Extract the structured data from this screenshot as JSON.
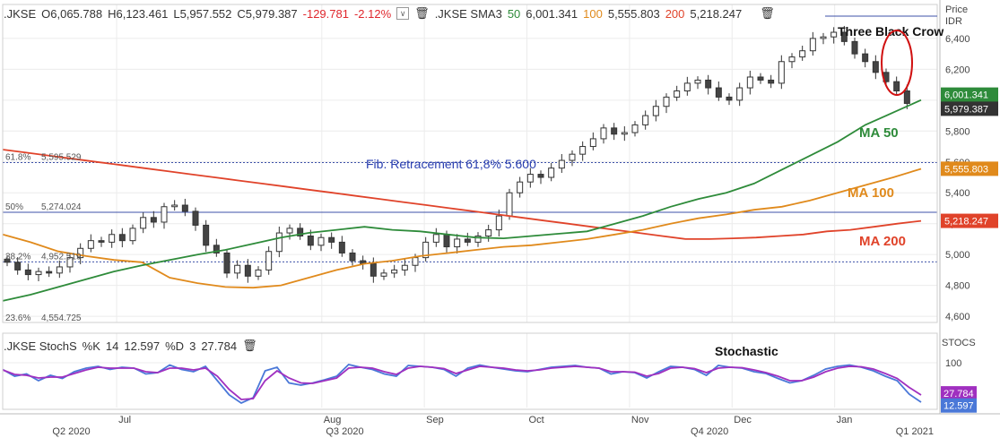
{
  "header": {
    "symbol": ".JKSE",
    "open_label": "O",
    "open": "6,065.788",
    "high_label": "H",
    "high": "6,123.461",
    "low_label": "L",
    "low": "5,957.552",
    "close_label": "C",
    "close": "5,979.387",
    "change": "-129.781",
    "change_pct": "-2.12%",
    "sma_symbol": ".JKSE SMA3",
    "sma50_len": "50",
    "sma50_val": "6,001.341",
    "sma100_len": "100",
    "sma100_val": "5,555.803",
    "sma200_len": "200",
    "sma200_val": "5,218.247",
    "price_axis_title": "Price",
    "price_axis_unit": "IDR"
  },
  "stoch_header": {
    "symbol": ".JKSE StochS",
    "k_label": "%K",
    "k_len": "14",
    "k_val": "12.597",
    "d_label": "%D",
    "d_len": "3",
    "d_val": "27.784",
    "axis_title": "STOCS"
  },
  "colors": {
    "candle_up": "#ffffff",
    "candle_down": "#444444",
    "ma50": "#2e8b3a",
    "ma100": "#e08a1c",
    "ma200": "#e0432a",
    "fib_line": "#3c50a8",
    "stoch_k": "#4a78d8",
    "stoch_d": "#a030c0",
    "negative": "#e0282e"
  },
  "chart_data": [
    {
      "type": "candlestick",
      "title": "",
      "ylabel": "Price IDR",
      "ylim": [
        4560,
        6620
      ],
      "y_ticks": [
        4600,
        4800,
        5000,
        5200,
        5400,
        5600,
        5800,
        6000,
        6200,
        6400
      ],
      "y_tick_labels": [
        "4,600",
        "4,800",
        "5,000",
        "5,200",
        "5,400",
        "5,600",
        "5,800",
        "6,000",
        "6,200",
        "6,400"
      ],
      "month_labels": [
        {
          "label": "Jul",
          "week": 5
        },
        {
          "label": "Aug",
          "week": 14
        },
        {
          "label": "Sep",
          "week": 18.5
        },
        {
          "label": "Oct",
          "week": 23
        },
        {
          "label": "Nov",
          "week": 27.5
        },
        {
          "label": "Dec",
          "week": 32
        },
        {
          "label": "Jan",
          "week": 36.5
        }
      ],
      "quarter_labels": [
        {
          "label": "Q2 2020",
          "week": 1
        },
        {
          "label": "Q3 2020",
          "week": 13
        },
        {
          "label": "Q4 2020",
          "week": 29
        },
        {
          "label": "Q1 2021",
          "week": 38
        }
      ],
      "close_series": [
        4950,
        4900,
        4870,
        4890,
        4880,
        4920,
        4980,
        5040,
        5090,
        5080,
        5130,
        5090,
        5170,
        5240,
        5210,
        5310,
        5320,
        5280,
        5190,
        5060,
        5010,
        4880,
        4930,
        4860,
        4900,
        5020,
        5140,
        5170,
        5120,
        5060,
        5110,
        5080,
        5010,
        4960,
        4940,
        4860,
        4880,
        4900,
        4930,
        4980,
        5080,
        5130,
        5050,
        5100,
        5080,
        5120,
        5160,
        5250,
        5400,
        5470,
        5520,
        5500,
        5560,
        5610,
        5650,
        5700,
        5750,
        5820,
        5780,
        5790,
        5840,
        5900,
        5960,
        6020,
        6060,
        6110,
        6130,
        6080,
        6020,
        6000,
        6080,
        6150,
        6130,
        6110,
        6250,
        6280,
        6320,
        6400,
        6410,
        6440,
        6380,
        6300,
        6250,
        6180,
        6120,
        6060,
        5979
      ],
      "ma50": [
        4700,
        4740,
        4790,
        4840,
        4890,
        4930,
        4965,
        5000,
        5030,
        5070,
        5110,
        5140,
        5160,
        5180,
        5160,
        5150,
        5130,
        5110,
        5105,
        5120,
        5135,
        5150,
        5200,
        5250,
        5310,
        5360,
        5400,
        5460,
        5550,
        5640,
        5730,
        5840,
        5920,
        6001
      ],
      "ma100": [
        5130,
        5080,
        5020,
        4990,
        4965,
        4950,
        4850,
        4815,
        4790,
        4785,
        4800,
        4850,
        4900,
        4940,
        4960,
        4990,
        5010,
        5030,
        5050,
        5060,
        5080,
        5100,
        5130,
        5160,
        5200,
        5235,
        5260,
        5290,
        5310,
        5350,
        5400,
        5450,
        5500,
        5555
      ],
      "ma200": [
        5680,
        5660,
        5640,
        5620,
        5600,
        5580,
        5560,
        5540,
        5520,
        5500,
        5480,
        5460,
        5440,
        5420,
        5400,
        5380,
        5360,
        5340,
        5320,
        5300,
        5280,
        5260,
        5240,
        5220,
        5200,
        5180,
        5160,
        5140,
        5120,
        5100,
        5100,
        5105,
        5110,
        5120,
        5130,
        5150,
        5160,
        5180,
        5200,
        5218
      ],
      "fib_levels": [
        {
          "label": "61.8%",
          "value_label": "5,595.529",
          "value": 5595.529,
          "style": "dotted"
        },
        {
          "label": "50%",
          "value_label": "5,274.024",
          "value": 5274.024,
          "style": "solid"
        },
        {
          "label": "38.2%",
          "value_label": "4,952.519",
          "value": 4952.519,
          "style": "dotted"
        },
        {
          "label": "23.6%",
          "value_label": "4,554.725",
          "value": 4554.725,
          "style": "none"
        }
      ],
      "price_tags": [
        {
          "label": "6,001.341",
          "value": 6001.341,
          "bg": "#2e8b3a"
        },
        {
          "label": "5,979.387",
          "value": 5979.387,
          "bg": "#333333"
        },
        {
          "label": "5,555.803",
          "value": 5555.803,
          "bg": "#e08a1c"
        },
        {
          "label": "5,218.247",
          "value": 5218.247,
          "bg": "#e0432a"
        }
      ],
      "annotations": {
        "fib_text": "Fib. Retracement 61,8%   5.600",
        "pattern_text": "Three Black Crow",
        "ma50_text": "MA 50",
        "ma100_text": "MA 100",
        "ma200_text": "MA 200"
      }
    },
    {
      "type": "line",
      "title": "Stochastic",
      "ylim": [
        0,
        120
      ],
      "y_ticks": [
        100
      ],
      "y_tick_labels": [
        "100"
      ],
      "series": [
        {
          "name": "%K",
          "values": [
            85,
            70,
            75,
            60,
            72,
            65,
            80,
            88,
            92,
            85,
            90,
            88,
            75,
            78,
            95,
            85,
            80,
            92,
            60,
            28,
            10,
            22,
            82,
            90,
            55,
            50,
            55,
            62,
            70,
            96,
            90,
            85,
            75,
            70,
            94,
            92,
            90,
            85,
            70,
            88,
            95,
            90,
            86,
            82,
            80,
            85,
            90,
            92,
            94,
            90,
            88,
            75,
            80,
            78,
            66,
            80,
            92,
            90,
            85,
            72,
            94,
            90,
            88,
            80,
            76,
            65,
            55,
            60,
            72,
            86,
            92,
            95,
            90,
            82,
            70,
            60,
            30,
            12
          ]
        },
        {
          "name": "%D",
          "values": [
            84,
            74,
            72,
            66,
            68,
            68,
            76,
            84,
            90,
            88,
            88,
            88,
            80,
            78,
            88,
            88,
            84,
            88,
            70,
            40,
            18,
            20,
            60,
            82,
            66,
            55,
            54,
            60,
            66,
            88,
            90,
            88,
            80,
            74,
            88,
            92,
            90,
            87,
            76,
            84,
            92,
            90,
            88,
            84,
            82,
            84,
            88,
            90,
            92,
            90,
            88,
            80,
            80,
            79,
            70,
            76,
            88,
            90,
            87,
            78,
            88,
            90,
            89,
            84,
            78,
            70,
            60,
            60,
            68,
            80,
            88,
            92,
            91,
            86,
            76,
            65,
            45,
            28
          ]
        }
      ],
      "tags": [
        {
          "label": "27.784",
          "value": 27.784,
          "bg": "#a030c0"
        },
        {
          "label": "12.597",
          "value": 12.597,
          "bg": "#4a78d8"
        }
      ]
    }
  ]
}
